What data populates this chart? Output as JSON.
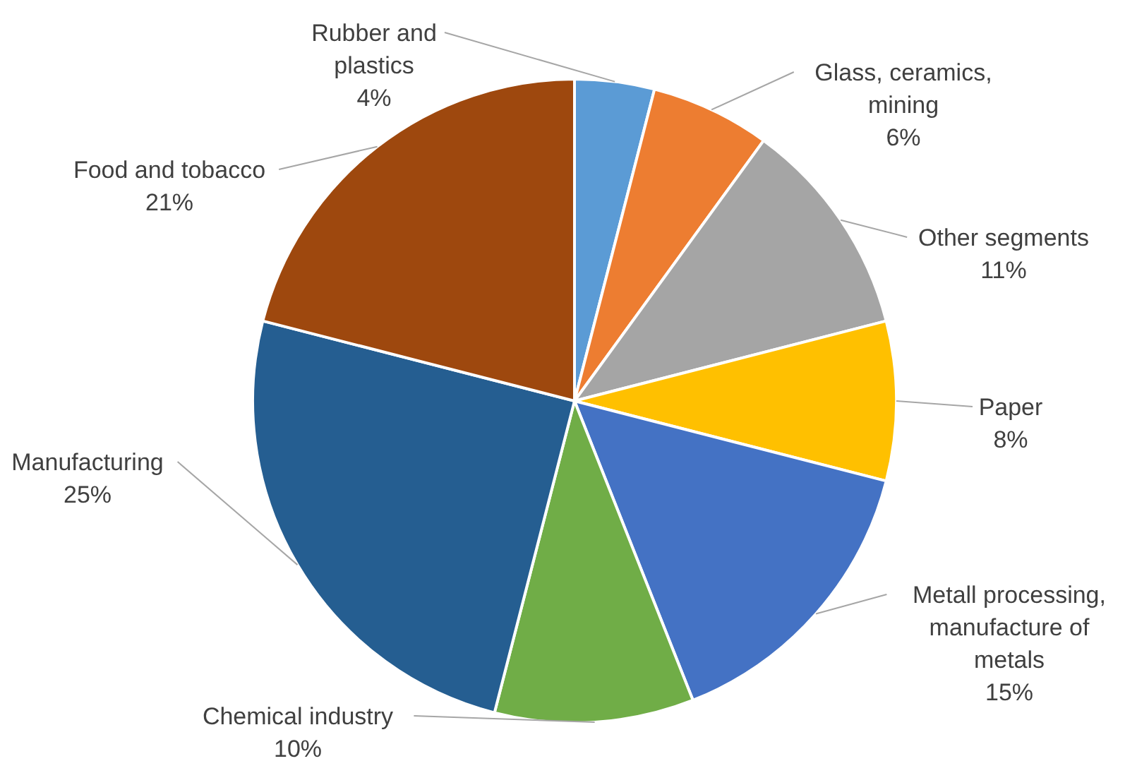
{
  "chart_data": {
    "type": "pie",
    "categories": [
      "Rubber and plastics",
      "Glass, ceramics, mining",
      "Other segments",
      "Paper",
      "Metall processing, manufacture of metals",
      "Chemical industry",
      "Manufacturing",
      "Food and tobacco"
    ],
    "values": [
      4,
      6,
      11,
      8,
      15,
      10,
      25,
      21
    ],
    "colors": [
      "#5b9bd5",
      "#ed7d31",
      "#a5a5a5",
      "#ffc000",
      "#4472c4",
      "#70ad47",
      "#255e91",
      "#9e480e"
    ],
    "value_labels": [
      "4%",
      "6%",
      "11%",
      "8%",
      "15%",
      "10%",
      "25%",
      "21%"
    ]
  }
}
